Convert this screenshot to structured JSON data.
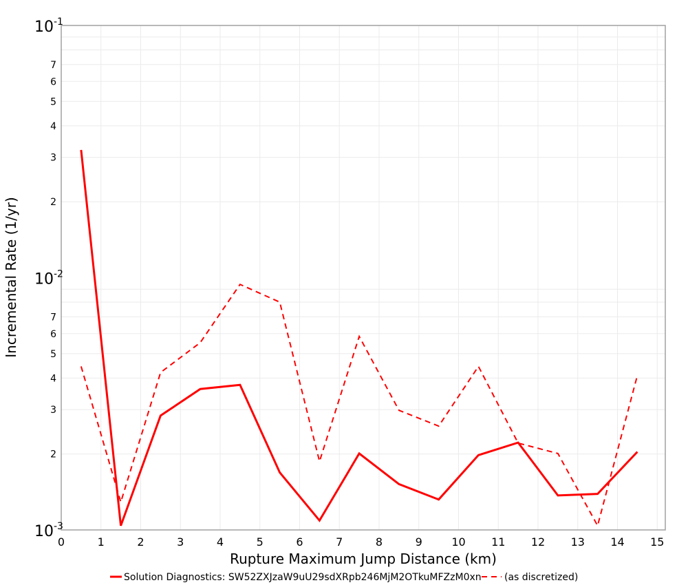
{
  "chart_data": {
    "type": "line",
    "title": "",
    "xlabel": "Rupture Maximum Jump Distance (km)",
    "ylabel": "Incremental Rate (1/yr)",
    "xlim": [
      0,
      15
    ],
    "ylim": [
      0.001,
      0.1
    ],
    "yscale": "log",
    "grid": true,
    "legend_position": "bottom",
    "x_ticks": [
      "0",
      "1",
      "2",
      "3",
      "4",
      "5",
      "6",
      "7",
      "8",
      "9",
      "10",
      "11",
      "12",
      "13",
      "14",
      "15"
    ],
    "y_decade_ticks": [
      {
        "base": "10",
        "exp": "-1"
      },
      {
        "base": "10",
        "exp": "-2"
      },
      {
        "base": "10",
        "exp": "-3"
      }
    ],
    "y_minor_labels": [
      "2",
      "3",
      "4",
      "5",
      "6",
      "7"
    ],
    "x": [
      0.5,
      1.5,
      2.5,
      3.5,
      4.5,
      5.5,
      6.5,
      7.5,
      8.5,
      9.5,
      10.5,
      11.5,
      12.5,
      13.5,
      14.5
    ],
    "series": [
      {
        "name": "Solution Diagnostics: SW52ZXJzaW9uU29sdXRpb246MjM2OTkuMFZzM0xn",
        "style": "solid",
        "color": "#ff0000",
        "values": [
          0.0321,
          0.00104,
          0.00284,
          0.00362,
          0.00376,
          0.00169,
          0.00109,
          0.00201,
          0.00152,
          0.00132,
          0.00198,
          0.00222,
          0.00137,
          0.00139,
          0.00204
        ]
      },
      {
        "name": "(as discretized)",
        "style": "dashed",
        "color": "#ff0000",
        "values": [
          0.00445,
          0.00129,
          0.00421,
          0.00553,
          0.00941,
          0.008,
          0.00187,
          0.00585,
          0.00298,
          0.00258,
          0.00445,
          0.00221,
          0.00201,
          0.00104,
          0.0041
        ]
      }
    ]
  }
}
